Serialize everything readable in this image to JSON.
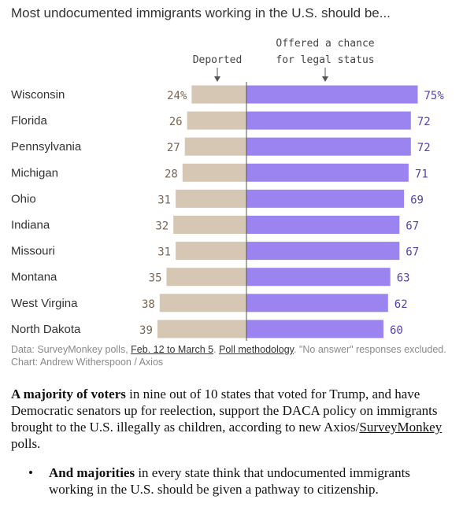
{
  "chart_data": {
    "type": "bar",
    "title": "Most undocumented immigrants working in the U.S. should be...",
    "categories": [
      "Wisconsin",
      "Florida",
      "Pennsylvania",
      "Michigan",
      "Ohio",
      "Indiana",
      "Missouri",
      "Montana",
      "West Virgina",
      "North Dakota"
    ],
    "series": [
      {
        "name": "Deported",
        "values": [
          24,
          26,
          27,
          28,
          31,
          32,
          31,
          35,
          38,
          39
        ],
        "color": "#d6c6b4",
        "label_color": "#7a6652"
      },
      {
        "name": "Offered a chance for legal status",
        "values": [
          75,
          72,
          72,
          71,
          69,
          67,
          67,
          63,
          62,
          60
        ],
        "color": "#9b84f0",
        "label_color": "#5a3fb0"
      }
    ],
    "value_labels_first_row": {
      "deported": "24%",
      "legal": "75%"
    },
    "legend": {
      "deported_label": "Deported",
      "legal_line1": "Offered a chance",
      "legal_line2": "for legal status"
    },
    "layout": "diverging, deported left / legal right of center line"
  },
  "source": {
    "prefix": "Data: SurveyMonkey polls, ",
    "link1": "Feb. 12 to March 5",
    "mid": ". ",
    "link2": "Poll methodology",
    "suffix": ". \"No answer\" responses excluded. Chart: Andrew Witherspoon / Axios"
  },
  "paragraph": {
    "bold": "A majority of voters",
    "text1": " in nine out of 10 states that voted for Trump, and have Democratic senators up for reelection, support the DACA policy on immigrants brought to the U.S. illegally as children, according to new Axios/",
    "link": "SurveyMonkey",
    "text2": " polls."
  },
  "bullet": {
    "marker": "•",
    "bold": "And majorities",
    "text": " in every state think that undocumented immigrants working in the U.S. should be given a pathway to citizenship."
  }
}
